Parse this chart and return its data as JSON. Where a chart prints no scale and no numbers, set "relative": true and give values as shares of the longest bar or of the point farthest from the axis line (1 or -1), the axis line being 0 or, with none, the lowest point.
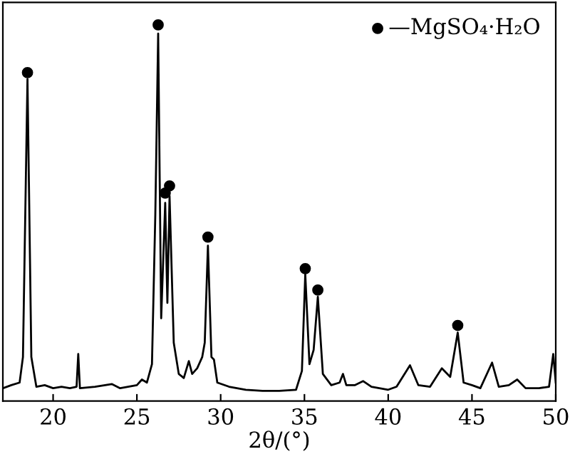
{
  "chart_data": {
    "type": "line",
    "relative": true,
    "xlabel": "2θ/(°)",
    "xlim": [
      17,
      50
    ],
    "xticks": [
      20,
      25,
      30,
      35,
      40,
      45,
      50
    ],
    "tick_labels": "x",
    "grid": false,
    "legend": "top right",
    "series": [
      {
        "color": "#000000",
        "marker": "none",
        "x": [
          17.0,
          17.5,
          18.0,
          18.2,
          18.47,
          18.7,
          19.0,
          19.5,
          20.0,
          20.5,
          21.0,
          21.4,
          21.5,
          21.6,
          22.5,
          23.5,
          24.0,
          25.0,
          25.3,
          25.6,
          25.9,
          26.1,
          26.27,
          26.45,
          26.69,
          26.82,
          26.95,
          27.2,
          27.5,
          27.8,
          28.1,
          28.3,
          28.6,
          28.9,
          29.05,
          29.24,
          29.45,
          29.6,
          29.8,
          30.5,
          31.5,
          32.5,
          33.5,
          34.5,
          34.85,
          35.05,
          35.3,
          35.55,
          35.8,
          36.1,
          36.6,
          37.1,
          37.3,
          37.5,
          38.0,
          38.5,
          39.0,
          40.0,
          40.5,
          41.3,
          41.8,
          42.5,
          43.2,
          43.7,
          44.15,
          44.5,
          45.0,
          45.5,
          46.2,
          46.6,
          47.2,
          47.7,
          48.2,
          49.0,
          49.6,
          49.85,
          50.0
        ],
        "values": [
          0.034,
          0.042,
          0.049,
          0.117,
          0.856,
          0.117,
          0.038,
          0.042,
          0.034,
          0.038,
          0.034,
          0.038,
          0.125,
          0.034,
          0.038,
          0.045,
          0.034,
          0.042,
          0.057,
          0.049,
          0.098,
          0.496,
          0.977,
          0.22,
          0.527,
          0.261,
          0.545,
          0.155,
          0.072,
          0.061,
          0.106,
          0.072,
          0.087,
          0.117,
          0.155,
          0.413,
          0.117,
          0.11,
          0.049,
          0.038,
          0.03,
          0.027,
          0.027,
          0.03,
          0.08,
          0.337,
          0.098,
          0.136,
          0.277,
          0.072,
          0.042,
          0.049,
          0.072,
          0.042,
          0.042,
          0.053,
          0.038,
          0.03,
          0.038,
          0.095,
          0.042,
          0.038,
          0.087,
          0.064,
          0.182,
          0.049,
          0.042,
          0.034,
          0.102,
          0.038,
          0.042,
          0.057,
          0.034,
          0.034,
          0.038,
          0.125,
          0.049
        ]
      },
      {
        "type": "scatter",
        "name": "—MgSO₄·H₂O",
        "color": "#000000",
        "marker": "circle",
        "x": [
          18.47,
          26.27,
          26.69,
          26.95,
          29.24,
          35.05,
          35.8,
          44.15
        ],
        "values": [
          0.873,
          1.0,
          0.553,
          0.572,
          0.436,
          0.352,
          0.295,
          0.201
        ]
      }
    ]
  }
}
